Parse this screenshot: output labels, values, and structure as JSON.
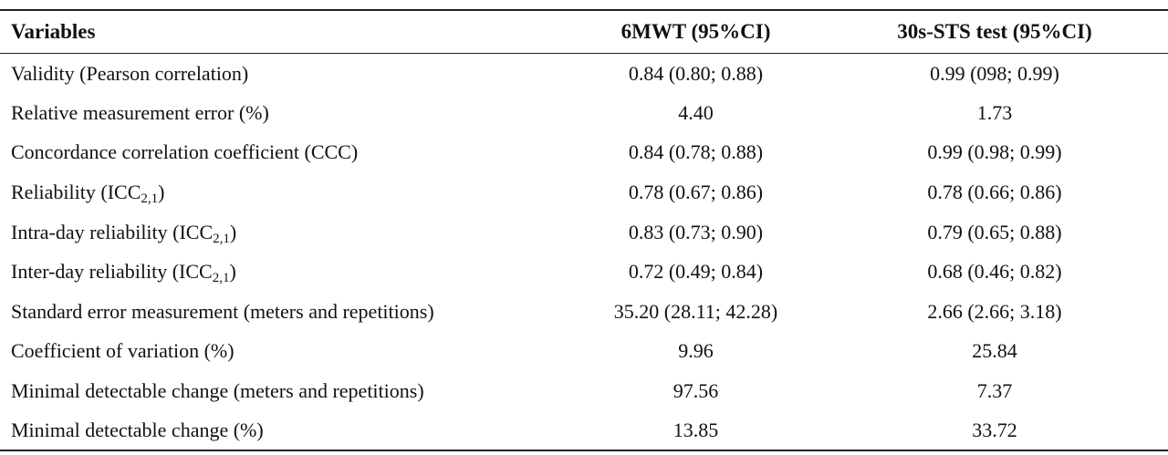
{
  "table": {
    "headers": [
      "Variables",
      "6MWT (95%CI)",
      "30s-STS test (95%CI)"
    ],
    "rows": [
      {
        "label": "Validity (Pearson correlation)",
        "label_sub": "",
        "label_after": "",
        "mwt": "0.84 (0.80; 0.88)",
        "sts": "0.99 (098; 0.99)"
      },
      {
        "label": "Relative measurement error (%)",
        "label_sub": "",
        "label_after": "",
        "mwt": "4.40",
        "sts": "1.73"
      },
      {
        "label": "Concordance correlation coefficient (CCC)",
        "label_sub": "",
        "label_after": "",
        "mwt": "0.84 (0.78; 0.88)",
        "sts": "0.99 (0.98; 0.99)"
      },
      {
        "label": "Reliability (ICC",
        "label_sub": "2,1",
        "label_after": ")",
        "mwt": "0.78 (0.67; 0.86)",
        "sts": "0.78 (0.66; 0.86)"
      },
      {
        "label": "Intra-day reliability (ICC",
        "label_sub": "2,1",
        "label_after": ")",
        "mwt": "0.83 (0.73; 0.90)",
        "sts": "0.79 (0.65; 0.88)"
      },
      {
        "label": "Inter-day reliability (ICC",
        "label_sub": "2,1",
        "label_after": ")",
        "mwt": "0.72 (0.49; 0.84)",
        "sts": "0.68 (0.46; 0.82)"
      },
      {
        "label": "Standard error measurement (meters and repetitions)",
        "label_sub": "",
        "label_after": "",
        "mwt": "35.20 (28.11; 42.28)",
        "sts": "2.66 (2.66; 3.18)"
      },
      {
        "label": "Coefficient of variation (%)",
        "label_sub": "",
        "label_after": "",
        "mwt": "9.96",
        "sts": "25.84"
      },
      {
        "label": "Minimal detectable change (meters and repetitions)",
        "label_sub": "",
        "label_after": "",
        "mwt": "97.56",
        "sts": "7.37"
      },
      {
        "label": "Minimal detectable change (%)",
        "label_sub": "",
        "label_after": "",
        "mwt": "13.85",
        "sts": "33.72"
      }
    ]
  }
}
